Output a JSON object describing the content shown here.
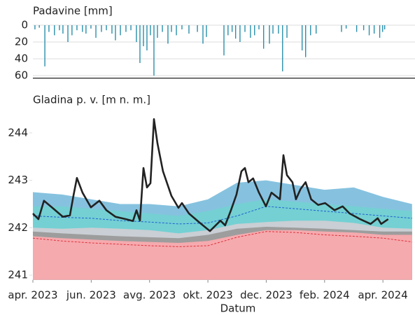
{
  "chart_data": [
    {
      "type": "bar",
      "title": "Padavine [mm]",
      "color": "#2a8fab",
      "y_inverted": true,
      "grid": true,
      "x": [
        0.07,
        0.22,
        0.41,
        0.55,
        0.74,
        0.91,
        1.03,
        1.2,
        1.34,
        1.51,
        1.7,
        1.82,
        1.99,
        2.16,
        2.35,
        2.52,
        2.71,
        2.83,
        3.0,
        3.19,
        3.36,
        3.55,
        3.67,
        3.79,
        3.91,
        4.03,
        4.15,
        4.27,
        4.44,
        4.63,
        4.75,
        4.92,
        5.11,
        5.35,
        5.64,
        5.83,
        5.95,
        6.55,
        6.69,
        6.83,
        6.95,
        7.1,
        7.27,
        7.46,
        7.6,
        7.75,
        7.91,
        8.11,
        8.23,
        8.42,
        8.56,
        8.71,
        9.23,
        9.35,
        9.52,
        9.71,
        10.58,
        10.74,
        11.1,
        11.34,
        11.53,
        11.7,
        11.89,
        11.99,
        12.06
      ],
      "values": [
        5,
        3,
        49,
        8,
        12,
        6,
        10,
        20,
        12,
        6,
        8,
        10,
        4,
        15,
        8,
        6,
        10,
        18,
        12,
        8,
        6,
        20,
        45,
        25,
        30,
        12,
        60,
        15,
        8,
        22,
        8,
        12,
        5,
        10,
        8,
        22,
        14,
        36,
        12,
        8,
        16,
        20,
        8,
        15,
        12,
        5,
        28,
        22,
        10,
        10,
        55,
        15,
        30,
        38,
        12,
        10,
        8,
        4,
        8,
        6,
        12,
        10,
        15,
        8,
        5
      ],
      "xlim": [
        0,
        13.1
      ],
      "ylim": [
        0,
        63
      ],
      "yticks": [
        0,
        20,
        40,
        60
      ]
    },
    {
      "type": "line",
      "title": "Gladina p. v. [m n. m.]",
      "xlabel": "Datum",
      "grid": false,
      "x": [
        0,
        1,
        2,
        3,
        4,
        5,
        6,
        7,
        8,
        9,
        10,
        11,
        12,
        13
      ],
      "series": [
        {
          "kind": "area",
          "color": "#86c2df",
          "values": [
            242.75,
            242.7,
            242.6,
            242.5,
            242.5,
            242.45,
            242.6,
            242.95,
            243.0,
            242.9,
            242.8,
            242.85,
            242.65,
            242.5
          ]
        },
        {
          "kind": "area",
          "color": "#74d0d3",
          "values": [
            242.45,
            242.45,
            242.4,
            242.35,
            242.3,
            242.25,
            242.35,
            242.5,
            242.6,
            242.55,
            242.5,
            242.45,
            242.4,
            242.35
          ]
        },
        {
          "kind": "area",
          "color": "#c9cfd4",
          "values": [
            242.0,
            241.98,
            242.0,
            241.98,
            241.95,
            241.88,
            241.95,
            242.08,
            242.12,
            242.15,
            242.15,
            242.1,
            242.0,
            241.98
          ]
        },
        {
          "kind": "area",
          "color": "#9d9d9d",
          "values": [
            241.92,
            241.88,
            241.85,
            241.82,
            241.8,
            241.78,
            241.85,
            241.98,
            242.02,
            242.0,
            241.98,
            241.95,
            241.92,
            241.92
          ]
        },
        {
          "kind": "area",
          "color": "#f5aaae",
          "values": [
            241.82,
            241.78,
            241.75,
            241.72,
            241.7,
            241.68,
            241.72,
            241.85,
            241.95,
            241.95,
            241.92,
            241.9,
            241.85,
            241.85
          ]
        },
        {
          "kind": "line",
          "dash": true,
          "color": "#e0303a",
          "values": [
            241.78,
            241.72,
            241.68,
            241.65,
            241.62,
            241.6,
            241.62,
            241.8,
            241.92,
            241.9,
            241.85,
            241.82,
            241.78,
            241.7
          ]
        },
        {
          "kind": "line",
          "dash": true,
          "color": "#1f5fd0",
          "values": [
            242.25,
            242.22,
            242.2,
            242.15,
            242.12,
            242.08,
            242.1,
            242.25,
            242.45,
            242.4,
            242.35,
            242.3,
            242.25,
            242.2
          ]
        },
        {
          "kind": "line",
          "color": "#222222",
          "x": [
            0,
            0.19,
            0.38,
            0.67,
            1.03,
            1.27,
            1.39,
            1.51,
            1.7,
            1.99,
            2.28,
            2.52,
            2.83,
            3.19,
            3.43,
            3.55,
            3.67,
            3.79,
            3.91,
            4.03,
            4.15,
            4.27,
            4.46,
            4.75,
            4.99,
            5.11,
            5.35,
            5.71,
            6.07,
            6.43,
            6.59,
            6.79,
            6.98,
            7.15,
            7.27,
            7.39,
            7.55,
            7.75,
            7.99,
            8.18,
            8.47,
            8.59,
            8.71,
            8.9,
            9.02,
            9.18,
            9.35,
            9.54,
            9.78,
            10.02,
            10.34,
            10.62,
            10.86,
            11.22,
            11.58,
            11.82,
            11.94,
            12.18
          ],
          "values": [
            242.3,
            242.18,
            242.57,
            242.42,
            242.23,
            242.26,
            242.67,
            243.05,
            242.74,
            242.43,
            242.57,
            242.37,
            242.23,
            242.18,
            242.14,
            242.37,
            242.15,
            243.26,
            242.85,
            242.94,
            244.29,
            243.78,
            243.19,
            242.67,
            242.42,
            242.52,
            242.3,
            242.11,
            241.93,
            242.15,
            242.05,
            242.37,
            242.7,
            243.19,
            243.26,
            242.96,
            243.04,
            242.74,
            242.45,
            242.74,
            242.6,
            243.53,
            243.11,
            242.96,
            242.6,
            242.82,
            242.96,
            242.6,
            242.48,
            242.52,
            242.37,
            242.45,
            242.3,
            242.18,
            242.08,
            242.2,
            242.08,
            242.18
          ]
        }
      ],
      "xlim": [
        0,
        13.1
      ],
      "ylim": [
        240.9,
        244.4
      ],
      "yticks": [
        241,
        242,
        243,
        244
      ],
      "xticks": [
        {
          "value": 0,
          "label": "apr. 2023"
        },
        {
          "value": 2,
          "label": "jun. 2023"
        },
        {
          "value": 4,
          "label": "avg. 2023"
        },
        {
          "value": 6,
          "label": "okt. 2023"
        },
        {
          "value": 8,
          "label": "dec. 2023"
        },
        {
          "value": 10,
          "label": "feb. 2024"
        },
        {
          "value": 12,
          "label": "apr. 2024"
        }
      ]
    }
  ]
}
